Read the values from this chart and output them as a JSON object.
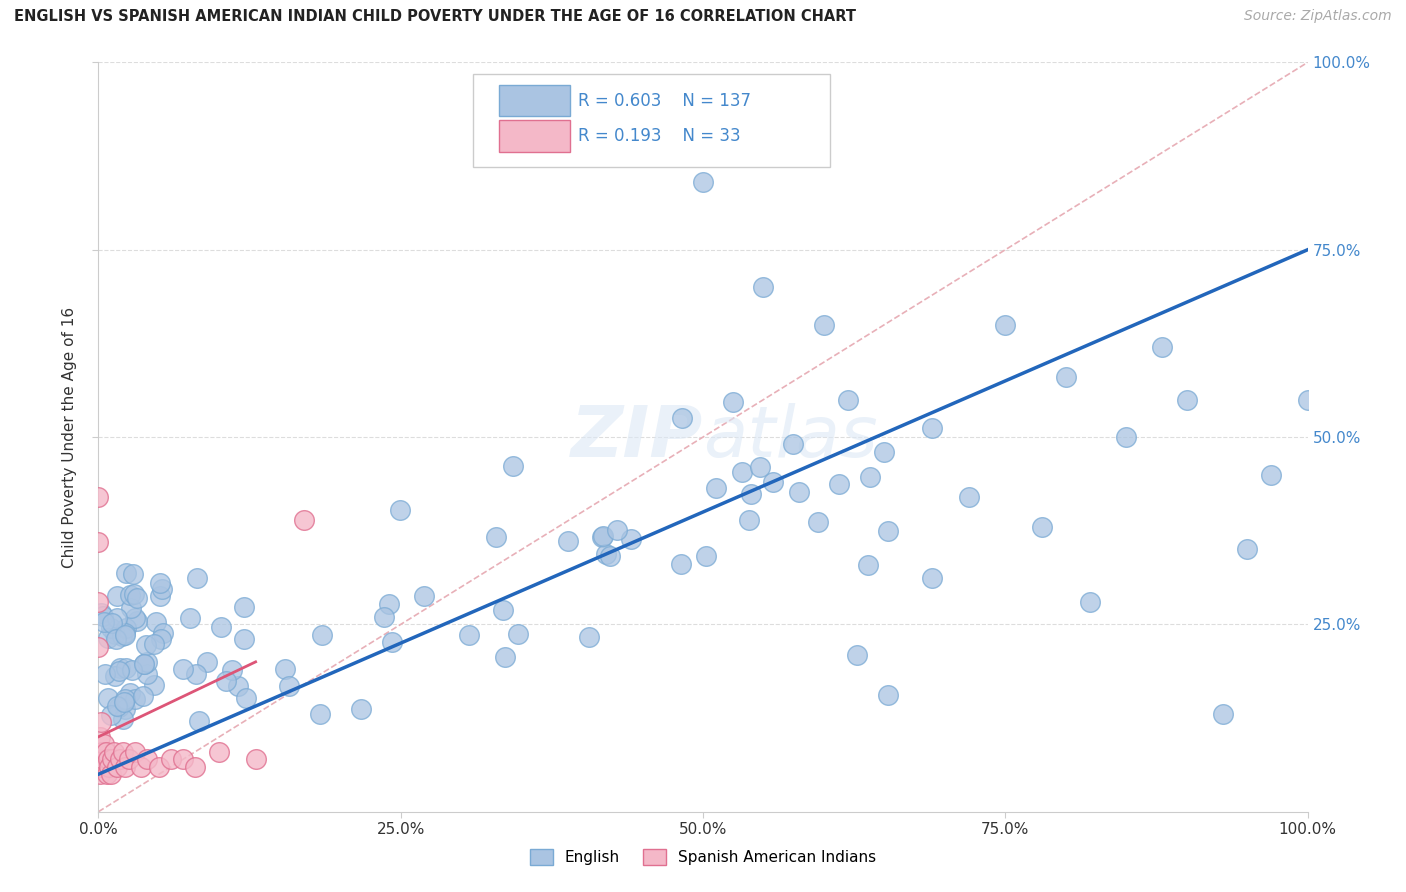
{
  "title": "ENGLISH VS SPANISH AMERICAN INDIAN CHILD POVERTY UNDER THE AGE OF 16 CORRELATION CHART",
  "source": "Source: ZipAtlas.com",
  "ylabel": "Child Poverty Under the Age of 16",
  "xlim": [
    0.0,
    1.0
  ],
  "ylim": [
    0.0,
    1.0
  ],
  "xticks": [
    0.0,
    0.25,
    0.5,
    0.75,
    1.0
  ],
  "yticks": [
    0.25,
    0.5,
    0.75,
    1.0
  ],
  "xticklabels": [
    "0.0%",
    "25.0%",
    "50.0%",
    "75.0%",
    "100.0%"
  ],
  "yticklabels": [
    "25.0%",
    "50.0%",
    "75.0%",
    "100.0%"
  ],
  "english_color": "#aac4e2",
  "english_edge_color": "#7aaad4",
  "spanish_color": "#f4b8c8",
  "spanish_edge_color": "#e07090",
  "trend_english_color": "#2266bb",
  "trend_spanish_color": "#dd5577",
  "diagonal_color": "#e8b0b8",
  "R_english": 0.603,
  "N_english": 137,
  "R_spanish": 0.193,
  "N_spanish": 33,
  "watermark": "ZIPatlas",
  "tick_color": "#4488cc",
  "grid_color": "#dddddd"
}
